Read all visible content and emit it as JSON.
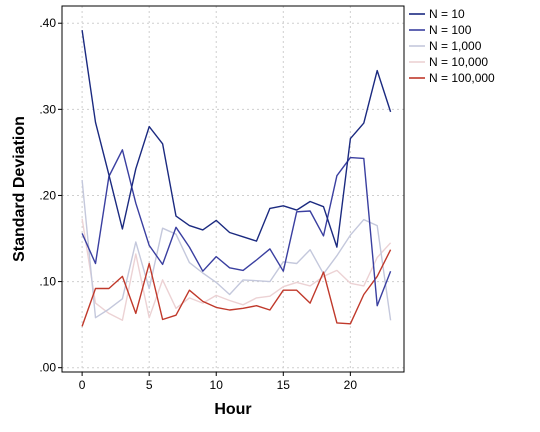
{
  "chart_data": {
    "type": "line",
    "xlabel": "Hour",
    "ylabel": "Standard Deviation",
    "xlim": [
      -1.5,
      24
    ],
    "ylim": [
      -0.005,
      0.42
    ],
    "x_ticks": [
      0,
      5,
      10,
      15,
      20
    ],
    "x_tick_labels": [
      "0",
      "5",
      "10",
      "15",
      "20"
    ],
    "y_ticks": [
      0.0,
      0.1,
      0.2,
      0.3,
      0.4
    ],
    "y_tick_labels": [
      ".00",
      ".10",
      ".20",
      ".30",
      ".40"
    ],
    "grid": true,
    "legend_position": "right",
    "x": [
      0,
      1,
      2,
      3,
      4,
      5,
      6,
      7,
      8,
      9,
      10,
      11,
      12,
      13,
      14,
      15,
      16,
      17,
      18,
      19,
      20,
      21,
      22,
      23
    ],
    "series": [
      {
        "name": "N = 10",
        "color": "#1b2a80",
        "values": [
          0.392,
          0.285,
          0.224,
          0.161,
          0.231,
          0.28,
          0.26,
          0.176,
          0.165,
          0.16,
          0.171,
          0.157,
          0.152,
          0.147,
          0.185,
          0.188,
          0.183,
          0.193,
          0.187,
          0.14,
          0.266,
          0.284,
          0.345,
          0.297
        ]
      },
      {
        "name": "N = 100",
        "color": "#3a3fa0",
        "values": [
          0.156,
          0.121,
          0.222,
          0.253,
          0.191,
          0.142,
          0.12,
          0.163,
          0.14,
          0.112,
          0.129,
          0.116,
          0.113,
          0.125,
          0.138,
          0.112,
          0.181,
          0.182,
          0.153,
          0.223,
          0.244,
          0.243,
          0.072,
          0.112
        ]
      },
      {
        "name": "N = 1,000",
        "color": "#c4c8dc",
        "values": [
          0.218,
          0.058,
          0.068,
          0.08,
          0.146,
          0.092,
          0.162,
          0.155,
          0.122,
          0.11,
          0.099,
          0.085,
          0.102,
          0.101,
          0.1,
          0.123,
          0.121,
          0.137,
          0.109,
          0.13,
          0.154,
          0.172,
          0.165,
          0.055
        ]
      },
      {
        "name": "N = 10,000",
        "color": "#ecd2d4",
        "values": [
          0.173,
          0.075,
          0.063,
          0.055,
          0.132,
          0.058,
          0.102,
          0.069,
          0.081,
          0.075,
          0.084,
          0.078,
          0.073,
          0.081,
          0.083,
          0.094,
          0.099,
          0.095,
          0.106,
          0.113,
          0.098,
          0.095,
          0.128,
          0.145
        ]
      },
      {
        "name": "N = 100,000",
        "color": "#c0392b",
        "values": [
          0.048,
          0.092,
          0.092,
          0.106,
          0.063,
          0.121,
          0.056,
          0.061,
          0.09,
          0.077,
          0.07,
          0.067,
          0.069,
          0.072,
          0.067,
          0.09,
          0.09,
          0.075,
          0.111,
          0.052,
          0.051,
          0.085,
          0.106,
          0.137
        ]
      }
    ]
  }
}
